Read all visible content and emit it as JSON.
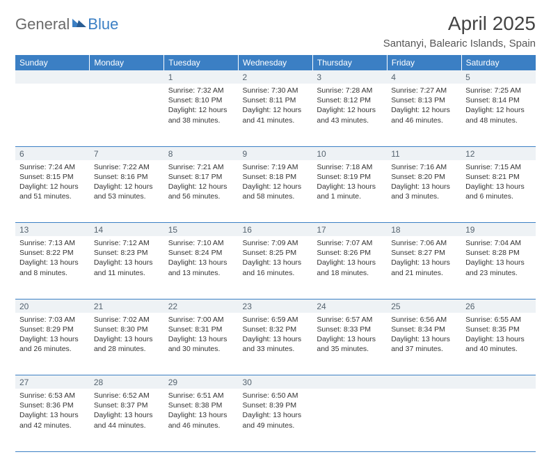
{
  "brand": {
    "part1": "General",
    "part2": "Blue"
  },
  "title": "April 2025",
  "location": "Santanyi, Balearic Islands, Spain",
  "styling": {
    "accent": "#3b7fc4",
    "header_bg": "#3b7fc4",
    "header_text": "#ffffff",
    "daynum_bg": "#eef2f5",
    "daynum_text": "#55636f",
    "body_text": "#333333",
    "page_bg": "#ffffff",
    "title_fontsize": 28,
    "location_fontsize": 15,
    "day_header_fontsize": 12,
    "cell_fontsize": 10.5
  },
  "day_headers": [
    "Sunday",
    "Monday",
    "Tuesday",
    "Wednesday",
    "Thursday",
    "Friday",
    "Saturday"
  ],
  "weeks": [
    [
      null,
      null,
      {
        "n": "1",
        "sunrise": "7:32 AM",
        "sunset": "8:10 PM",
        "daylight": "12 hours and 38 minutes."
      },
      {
        "n": "2",
        "sunrise": "7:30 AM",
        "sunset": "8:11 PM",
        "daylight": "12 hours and 41 minutes."
      },
      {
        "n": "3",
        "sunrise": "7:28 AM",
        "sunset": "8:12 PM",
        "daylight": "12 hours and 43 minutes."
      },
      {
        "n": "4",
        "sunrise": "7:27 AM",
        "sunset": "8:13 PM",
        "daylight": "12 hours and 46 minutes."
      },
      {
        "n": "5",
        "sunrise": "7:25 AM",
        "sunset": "8:14 PM",
        "daylight": "12 hours and 48 minutes."
      }
    ],
    [
      {
        "n": "6",
        "sunrise": "7:24 AM",
        "sunset": "8:15 PM",
        "daylight": "12 hours and 51 minutes."
      },
      {
        "n": "7",
        "sunrise": "7:22 AM",
        "sunset": "8:16 PM",
        "daylight": "12 hours and 53 minutes."
      },
      {
        "n": "8",
        "sunrise": "7:21 AM",
        "sunset": "8:17 PM",
        "daylight": "12 hours and 56 minutes."
      },
      {
        "n": "9",
        "sunrise": "7:19 AM",
        "sunset": "8:18 PM",
        "daylight": "12 hours and 58 minutes."
      },
      {
        "n": "10",
        "sunrise": "7:18 AM",
        "sunset": "8:19 PM",
        "daylight": "13 hours and 1 minute."
      },
      {
        "n": "11",
        "sunrise": "7:16 AM",
        "sunset": "8:20 PM",
        "daylight": "13 hours and 3 minutes."
      },
      {
        "n": "12",
        "sunrise": "7:15 AM",
        "sunset": "8:21 PM",
        "daylight": "13 hours and 6 minutes."
      }
    ],
    [
      {
        "n": "13",
        "sunrise": "7:13 AM",
        "sunset": "8:22 PM",
        "daylight": "13 hours and 8 minutes."
      },
      {
        "n": "14",
        "sunrise": "7:12 AM",
        "sunset": "8:23 PM",
        "daylight": "13 hours and 11 minutes."
      },
      {
        "n": "15",
        "sunrise": "7:10 AM",
        "sunset": "8:24 PM",
        "daylight": "13 hours and 13 minutes."
      },
      {
        "n": "16",
        "sunrise": "7:09 AM",
        "sunset": "8:25 PM",
        "daylight": "13 hours and 16 minutes."
      },
      {
        "n": "17",
        "sunrise": "7:07 AM",
        "sunset": "8:26 PM",
        "daylight": "13 hours and 18 minutes."
      },
      {
        "n": "18",
        "sunrise": "7:06 AM",
        "sunset": "8:27 PM",
        "daylight": "13 hours and 21 minutes."
      },
      {
        "n": "19",
        "sunrise": "7:04 AM",
        "sunset": "8:28 PM",
        "daylight": "13 hours and 23 minutes."
      }
    ],
    [
      {
        "n": "20",
        "sunrise": "7:03 AM",
        "sunset": "8:29 PM",
        "daylight": "13 hours and 26 minutes."
      },
      {
        "n": "21",
        "sunrise": "7:02 AM",
        "sunset": "8:30 PM",
        "daylight": "13 hours and 28 minutes."
      },
      {
        "n": "22",
        "sunrise": "7:00 AM",
        "sunset": "8:31 PM",
        "daylight": "13 hours and 30 minutes."
      },
      {
        "n": "23",
        "sunrise": "6:59 AM",
        "sunset": "8:32 PM",
        "daylight": "13 hours and 33 minutes."
      },
      {
        "n": "24",
        "sunrise": "6:57 AM",
        "sunset": "8:33 PM",
        "daylight": "13 hours and 35 minutes."
      },
      {
        "n": "25",
        "sunrise": "6:56 AM",
        "sunset": "8:34 PM",
        "daylight": "13 hours and 37 minutes."
      },
      {
        "n": "26",
        "sunrise": "6:55 AM",
        "sunset": "8:35 PM",
        "daylight": "13 hours and 40 minutes."
      }
    ],
    [
      {
        "n": "27",
        "sunrise": "6:53 AM",
        "sunset": "8:36 PM",
        "daylight": "13 hours and 42 minutes."
      },
      {
        "n": "28",
        "sunrise": "6:52 AM",
        "sunset": "8:37 PM",
        "daylight": "13 hours and 44 minutes."
      },
      {
        "n": "29",
        "sunrise": "6:51 AM",
        "sunset": "8:38 PM",
        "daylight": "13 hours and 46 minutes."
      },
      {
        "n": "30",
        "sunrise": "6:50 AM",
        "sunset": "8:39 PM",
        "daylight": "13 hours and 49 minutes."
      },
      null,
      null,
      null
    ]
  ],
  "labels": {
    "sunrise": "Sunrise:",
    "sunset": "Sunset:",
    "daylight": "Daylight:"
  }
}
